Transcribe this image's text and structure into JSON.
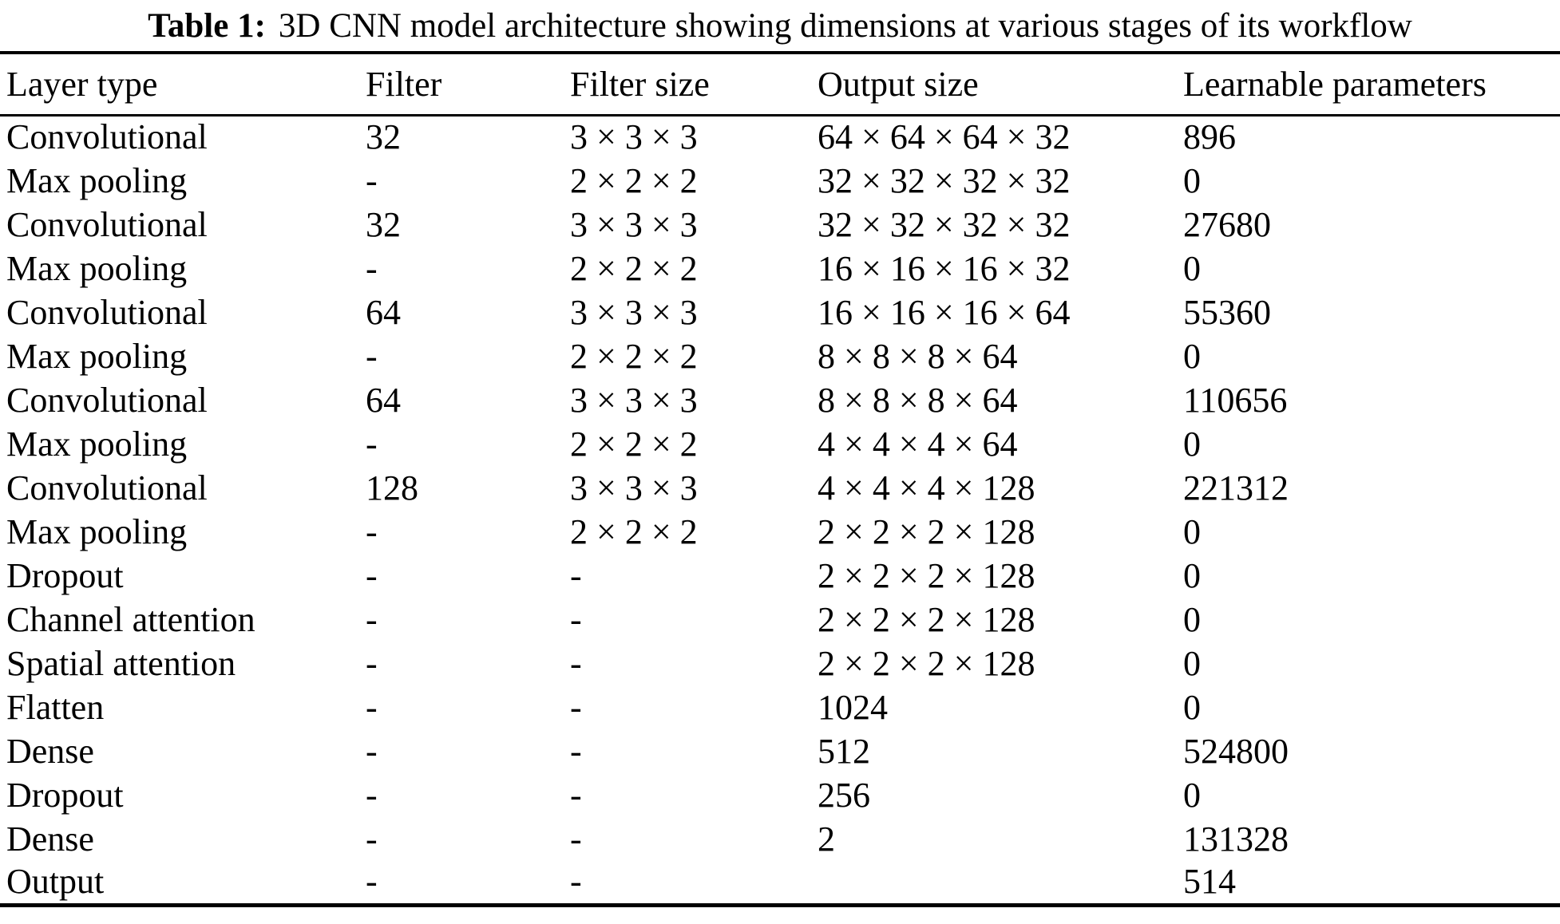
{
  "caption": {
    "label": "Table 1:",
    "text": "3D CNN model architecture showing dimensions at various stages of its workflow"
  },
  "chart_data": {
    "type": "table",
    "title": "3D CNN model architecture showing dimensions at various stages of its workflow",
    "columns": [
      "Layer type",
      "Filter",
      "Filter size",
      "Output size",
      "Learnable parameters"
    ],
    "rows": [
      [
        "Convolutional",
        "32",
        "3 × 3 × 3",
        "64 × 64 × 64 × 32",
        "896"
      ],
      [
        "Max pooling",
        "-",
        "2 × 2 × 2",
        "32 × 32 × 32 × 32",
        "0"
      ],
      [
        "Convolutional",
        "32",
        "3 × 3 × 3",
        "32 × 32 × 32 × 32",
        "27680"
      ],
      [
        "Max pooling",
        "-",
        "2 × 2 × 2",
        "16 × 16 × 16 × 32",
        "0"
      ],
      [
        "Convolutional",
        "64",
        "3 × 3 × 3",
        "16 × 16 × 16 × 64",
        "55360"
      ],
      [
        "Max pooling",
        "-",
        "2 × 2 × 2",
        "8 × 8 × 8 × 64",
        "0"
      ],
      [
        "Convolutional",
        "64",
        "3 × 3 × 3",
        "8 × 8 × 8 × 64",
        "110656"
      ],
      [
        "Max pooling",
        "-",
        "2 × 2 × 2",
        "4 × 4 × 4 × 64",
        "0"
      ],
      [
        "Convolutional",
        "128",
        "3 × 3 × 3",
        "4 × 4 × 4 × 128",
        "221312"
      ],
      [
        "Max pooling",
        "-",
        "2 × 2 × 2",
        "2 × 2 × 2 × 128",
        "0"
      ],
      [
        "Dropout",
        "-",
        "-",
        "2 × 2 × 2 × 128",
        "0"
      ],
      [
        "Channel attention",
        "-",
        "-",
        "2 × 2 × 2 × 128",
        "0"
      ],
      [
        "Spatial attention",
        "-",
        "-",
        "2 × 2 × 2 × 128",
        "0"
      ],
      [
        "Flatten",
        "-",
        "-",
        "1024",
        "0"
      ],
      [
        "Dense",
        "-",
        "-",
        "512",
        "524800"
      ],
      [
        "Dropout",
        "-",
        "-",
        "256",
        "0"
      ],
      [
        "Dense",
        "-",
        "-",
        "2",
        "131328"
      ],
      [
        "Output",
        "-",
        "-",
        "",
        "514"
      ]
    ]
  }
}
